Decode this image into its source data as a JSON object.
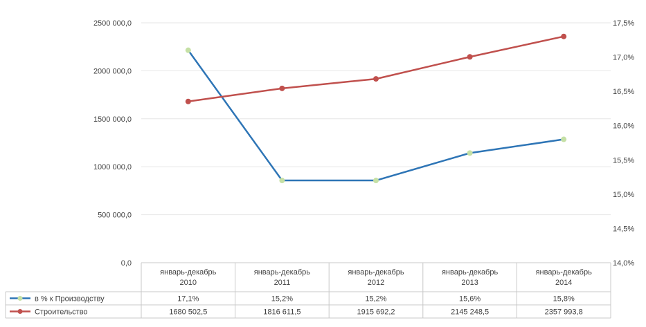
{
  "chart_data": {
    "type": "line",
    "title": "",
    "categories": [
      [
        "январь-декабрь",
        "2010"
      ],
      [
        "январь-декабрь",
        "2011"
      ],
      [
        "январь-декабрь",
        "2012"
      ],
      [
        "январь-декабрь",
        "2013"
      ],
      [
        "январь-декабрь",
        "2014"
      ]
    ],
    "y_left": {
      "ylim": [
        0,
        2500000
      ],
      "ticks": [
        0,
        500000,
        1000000,
        1500000,
        2000000,
        2500000
      ],
      "tick_labels": [
        "0,0",
        "500 000,0",
        "1000 000,0",
        "1500 000,0",
        "2000 000,0",
        "2500 000,0"
      ]
    },
    "y_right": {
      "ylim": [
        14.0,
        17.5
      ],
      "ticks": [
        14.0,
        14.5,
        15.0,
        15.5,
        16.0,
        16.5,
        17.0,
        17.5
      ],
      "tick_labels": [
        "14,0%",
        "14,5%",
        "15,0%",
        "15,5%",
        "16,0%",
        "16,5%",
        "17,0%",
        "17,5%"
      ]
    },
    "series": [
      {
        "name": "в % к Производству",
        "axis": "right",
        "color": "#2e75b6",
        "marker_color": "#c5e0a5",
        "values": [
          17.1,
          15.2,
          15.2,
          15.6,
          15.8
        ],
        "labels": [
          "17,1%",
          "15,2%",
          "15,2%",
          "15,6%",
          "15,8%"
        ]
      },
      {
        "name": "Строительство",
        "axis": "left",
        "color": "#c0504d",
        "marker_color": "#c0504d",
        "values": [
          1680502.5,
          1816611.5,
          1915692.2,
          2145248.5,
          2357993.8
        ],
        "labels": [
          "1680 502,5",
          "1816 611,5",
          "1915 692,2",
          "2145 248,5",
          "2357 993,8"
        ]
      }
    ],
    "grid": true,
    "legend": "data-table"
  }
}
